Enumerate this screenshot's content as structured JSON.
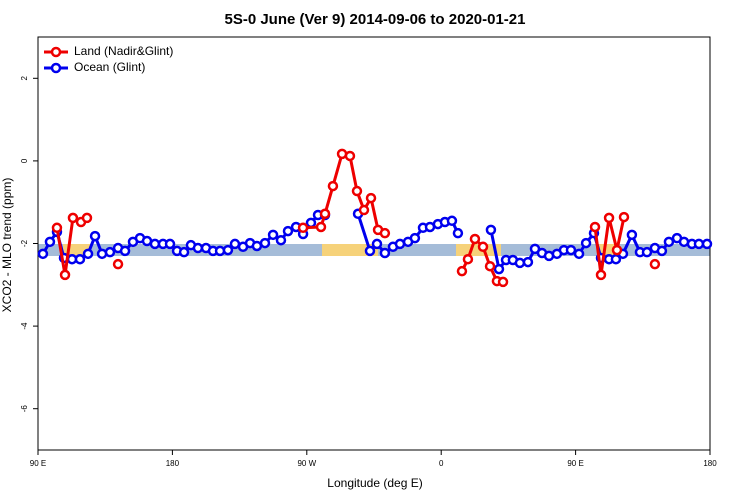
{
  "chart_data": {
    "type": "line",
    "title": "5S-0 June (Ver 9)   2014-09-06 to 2020-01-21",
    "x_label": "Longitude (deg E)",
    "y_label": "XCO2 - MLO trend (ppm)",
    "xlim": [
      90,
      540
    ],
    "ylim": [
      -7,
      3
    ],
    "xticks": [
      {
        "value": 90,
        "label": "90 E"
      },
      180,
      {
        "value": 270,
        "label": "90 W"
      },
      {
        "value": 360,
        "label": "0"
      },
      {
        "value": 450,
        "label": "90 E"
      },
      {
        "value": 540,
        "label": "180"
      }
    ],
    "yticks": [
      2,
      0,
      -2,
      -4,
      -6
    ],
    "legend": "top-left",
    "series": [
      {
        "name": "Land (Nadir&Glint)",
        "color": "#ee0000",
        "x": [
          102.7,
          108.1,
          113.4,
          118.8,
          122.8,
          null,
          143.6,
          null,
          267.5,
          279.5,
          282.2,
          287.5,
          293.6,
          298.9,
          303.6,
          308.3,
          313.0,
          317.7,
          322.3,
          null,
          373.9,
          377.9,
          382.6,
          388.0,
          392.7,
          397.3,
          401.4,
          null,
          463.0,
          467.0,
          472.4,
          477.7,
          482.4,
          null,
          503.1
        ],
        "values": [
          -1.62,
          -2.76,
          -1.38,
          -1.48,
          -1.38,
          null,
          -2.5,
          null,
          -1.62,
          -1.6,
          -1.28,
          -0.61,
          0.17,
          0.12,
          -0.73,
          -1.19,
          -0.9,
          -1.67,
          -1.75,
          null,
          -2.67,
          -2.38,
          -1.89,
          -2.08,
          -2.55,
          -2.91,
          -2.93,
          null,
          -1.6,
          -2.76,
          -1.38,
          -2.16,
          -1.36,
          null,
          -2.5
        ]
      },
      {
        "name": "Ocean (Glint)",
        "color": "#0000ee",
        "x": [
          93.3,
          98.0,
          102.7,
          107.4,
          112.8,
          118.1,
          123.5,
          128.2,
          132.9,
          138.2,
          143.6,
          148.3,
          153.6,
          158.3,
          163.0,
          168.3,
          173.7,
          178.4,
          183.1,
          187.8,
          192.4,
          197.1,
          202.5,
          207.2,
          211.9,
          217.2,
          221.9,
          227.3,
          232.0,
          236.6,
          242.0,
          247.4,
          252.7,
          257.4,
          262.8,
          267.5,
          272.8,
          277.5,
          282.2,
          null,
          304.3,
          312.3,
          317.0,
          322.3,
          327.7,
          332.4,
          337.8,
          342.4,
          347.8,
          352.5,
          357.8,
          362.5,
          367.2,
          371.2,
          null,
          393.3,
          398.7,
          403.4,
          408.0,
          412.7,
          418.1,
          422.8,
          427.5,
          432.2,
          437.5,
          442.2,
          446.9,
          452.3,
          457.0,
          462.3,
          467.0,
          472.4,
          477.0,
          481.7,
          487.7,
          493.1,
          497.8,
          503.1,
          507.8,
          512.5,
          517.9,
          522.6,
          527.9,
          532.6,
          538.0
        ],
        "values": [
          -2.25,
          -1.96,
          -1.72,
          -2.35,
          -2.38,
          -2.38,
          -2.25,
          -1.82,
          -2.25,
          -2.21,
          -2.11,
          -2.18,
          -1.96,
          -1.87,
          -1.94,
          -2.01,
          -2.01,
          -2.01,
          -2.18,
          -2.21,
          -2.04,
          -2.11,
          -2.11,
          -2.18,
          -2.18,
          -2.16,
          -2.01,
          -2.08,
          -1.99,
          -2.06,
          -1.99,
          -1.79,
          -1.92,
          -1.7,
          -1.6,
          -1.77,
          -1.5,
          -1.31,
          -1.31,
          null,
          -1.28,
          -2.18,
          -2.01,
          -2.23,
          -2.08,
          -2.01,
          -1.96,
          -1.87,
          -1.62,
          -1.6,
          -1.53,
          -1.48,
          -1.45,
          -1.75,
          null,
          -1.67,
          -2.62,
          -2.4,
          -2.4,
          -2.47,
          -2.45,
          -2.13,
          -2.23,
          -2.3,
          -2.25,
          -2.16,
          -2.16,
          -2.25,
          -1.99,
          -1.75,
          -2.35,
          -2.38,
          -2.38,
          -2.25,
          -1.79,
          -2.21,
          -2.21,
          -2.11,
          -2.18,
          -1.96,
          -1.87,
          -1.96,
          -2.01,
          -2.01,
          -2.01
        ]
      }
    ]
  }
}
